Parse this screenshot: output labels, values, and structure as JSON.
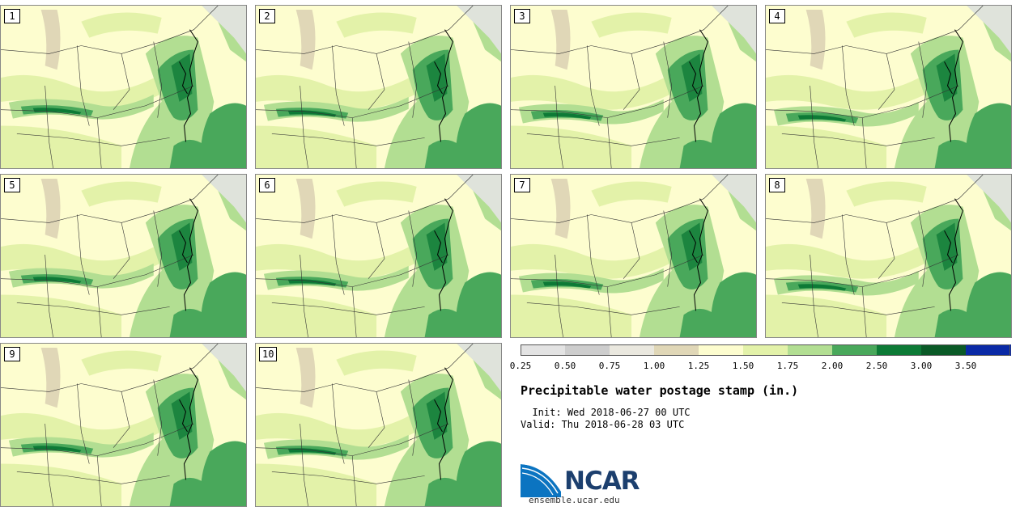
{
  "map": {
    "title": "Precipitable water postage stamp (in.)",
    "init": "  Init: Wed 2018-06-27 00 UTC",
    "valid": "Valid: Thu 2018-06-28 03 UTC",
    "members": [
      "1",
      "2",
      "3",
      "4",
      "5",
      "6",
      "7",
      "8",
      "9",
      "10"
    ],
    "colorbar": {
      "bins": [
        {
          "from": "0.25",
          "to": "0.50",
          "color": "#e3e3e3"
        },
        {
          "from": "0.50",
          "to": "0.75",
          "color": "#cdcdcd"
        },
        {
          "from": "0.75",
          "to": "1.00",
          "color": "#eae8df"
        },
        {
          "from": "1.00",
          "to": "1.25",
          "color": "#e0d7b7"
        },
        {
          "from": "1.25",
          "to": "1.50",
          "color": "#fdfdcf"
        },
        {
          "from": "1.50",
          "to": "1.75",
          "color": "#e3f2a9"
        },
        {
          "from": "1.75",
          "to": "2.00",
          "color": "#b2de92"
        },
        {
          "from": "2.00",
          "to": "2.50",
          "color": "#49a85b"
        },
        {
          "from": "2.50",
          "to": "3.00",
          "color": "#0d7a36"
        },
        {
          "from": "3.00",
          "to": "3.50",
          "color": "#0a5a27"
        },
        {
          "from": "3.50",
          "to": "",
          "color": "#0a2aa6"
        }
      ],
      "tick_labels": [
        "0.25",
        "0.50",
        "0.75",
        "1.00",
        "1.25",
        "1.50",
        "1.75",
        "2.00",
        "2.50",
        "3.00",
        "3.50"
      ]
    }
  },
  "branding": {
    "logo_text": "NCAR",
    "site": "ensemble.ucar.edu",
    "logo_colors": {
      "blue": "#0b74c1",
      "navy": "#1c3f6e"
    }
  }
}
